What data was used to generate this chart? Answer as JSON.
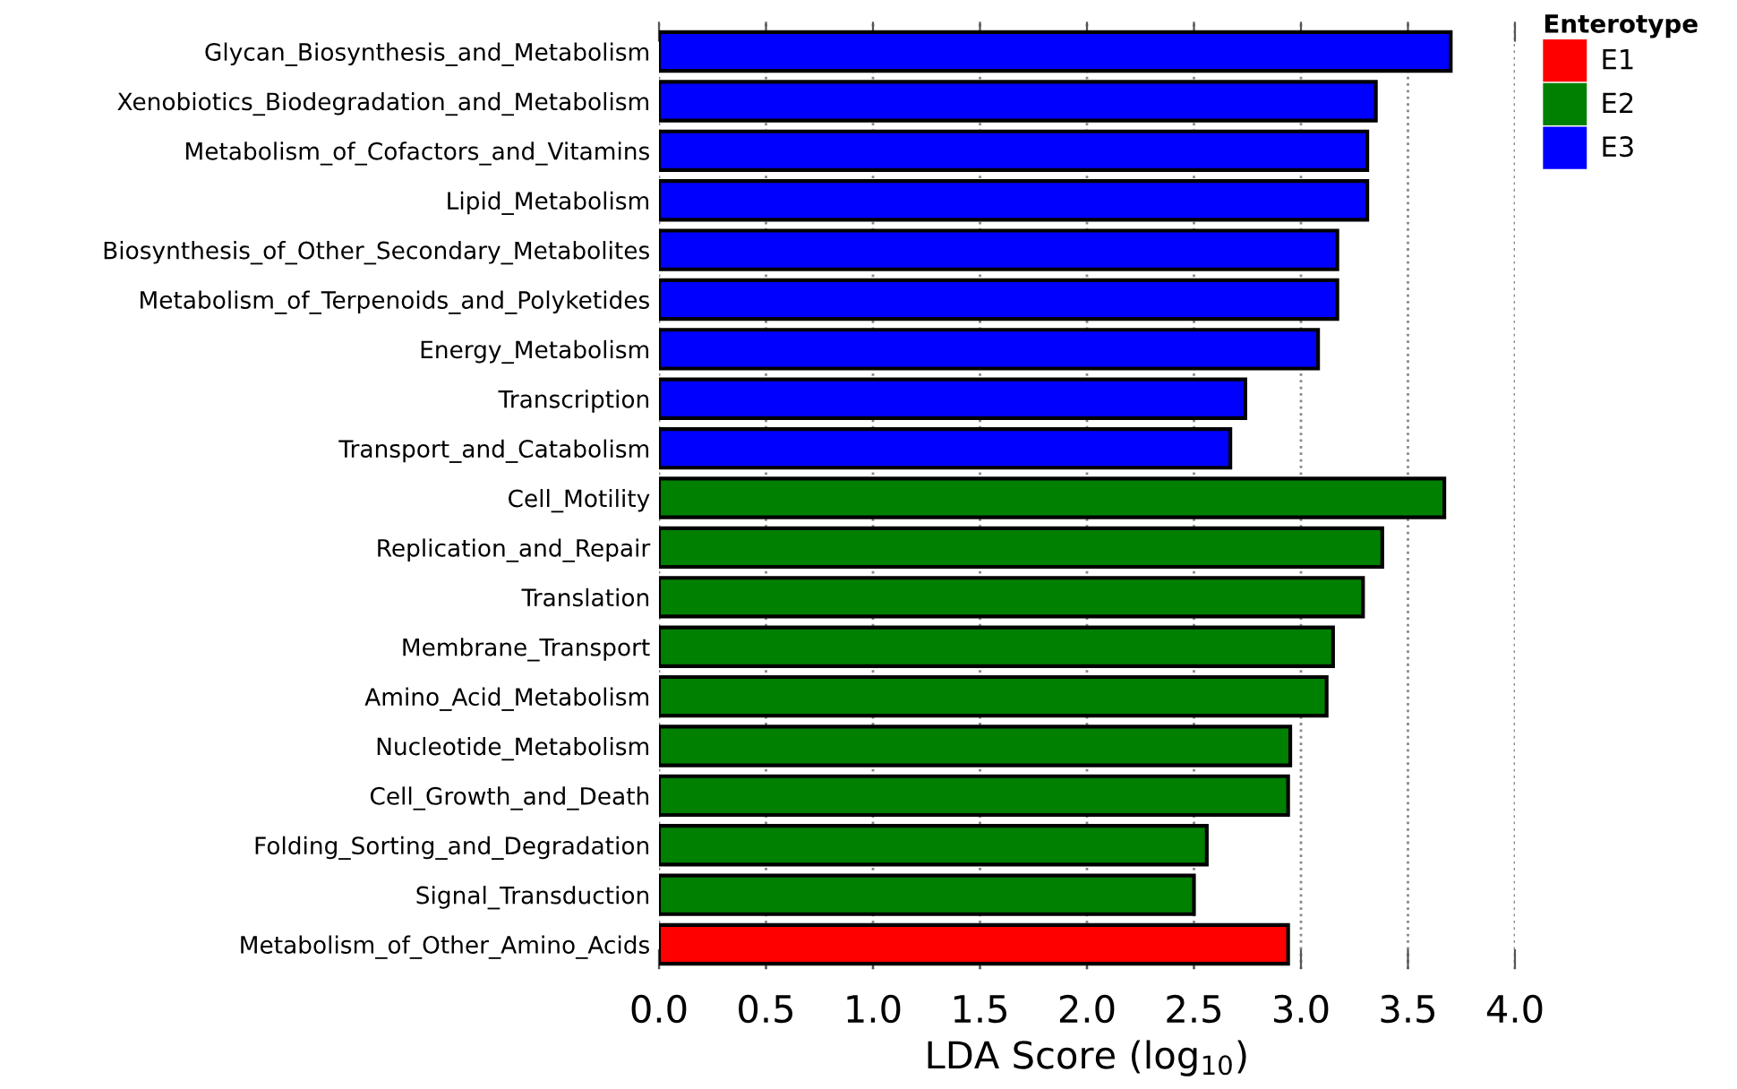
{
  "chart_data": {
    "type": "bar",
    "orientation": "horizontal",
    "xlabel": "LDA Score (log$_{10}$)",
    "legend_title": "Enterotype",
    "legend": "top right",
    "grid": "x",
    "line_style": "dotted",
    "categories": [
      "Glycan_Biosynthesis_and_Metabolism",
      "Xenobiotics_Biodegradation_and_Metabolism",
      "Metabolism_of_Cofactors_and_Vitamins",
      "Lipid_Metabolism",
      "Biosynthesis_of_Other_Secondary_Metabolites",
      "Metabolism_of_Terpenoids_and_Polyketides",
      "Energy_Metabolism",
      "Transcription",
      "Transport_and_Catabolism",
      "Cell_Motility",
      "Replication_and_Repair",
      "Translation",
      "Membrane_Transport",
      "Amino_Acid_Metabolism",
      "Nucleotide_Metabolism",
      "Cell_Growth_and_Death",
      "Folding_Sorting_and_Degradation",
      "Signal_Transduction",
      "Metabolism_of_Other_Amino_Acids"
    ],
    "series": [
      {
        "name": "E1",
        "color": "#ff0000",
        "values": [
          null,
          null,
          null,
          null,
          null,
          null,
          null,
          null,
          null,
          null,
          null,
          null,
          null,
          null,
          null,
          null,
          null,
          null,
          2.94
        ]
      },
      {
        "name": "E2",
        "color": "#008000",
        "values": [
          null,
          null,
          null,
          null,
          null,
          null,
          null,
          null,
          null,
          3.67,
          3.38,
          3.29,
          3.15,
          3.12,
          2.95,
          2.94,
          2.56,
          2.5,
          null
        ]
      },
      {
        "name": "E3",
        "color": "#0000ff",
        "values": [
          3.7,
          3.35,
          3.31,
          3.31,
          3.17,
          3.17,
          3.08,
          2.74,
          2.67,
          null,
          null,
          null,
          null,
          null,
          null,
          null,
          null,
          null,
          null
        ]
      }
    ],
    "xlim": [
      0,
      4.0
    ],
    "xticks": [
      {
        "value": 0,
        "label": "0.0"
      },
      {
        "value": 0.5,
        "label": "0.5"
      },
      {
        "value": 1,
        "label": "1.0"
      },
      {
        "value": 1.5,
        "label": "1.5"
      },
      {
        "value": 2,
        "label": "2.0"
      },
      {
        "value": 2.5,
        "label": "2.5"
      },
      {
        "value": 3,
        "label": "3.0"
      },
      {
        "value": 3.5,
        "label": "3.5"
      },
      {
        "value": 4,
        "label": "4.0"
      }
    ]
  }
}
